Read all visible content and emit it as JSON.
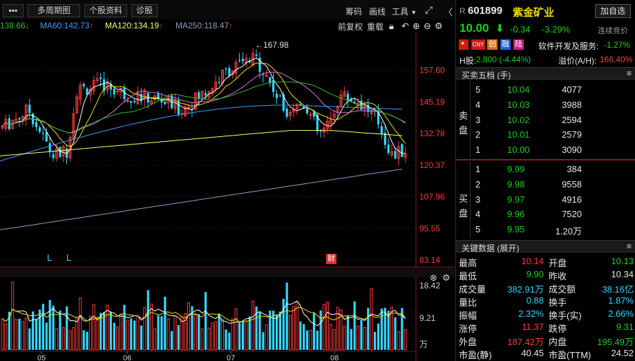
{
  "toolbar": {
    "grid_icon": "▪▪▪",
    "period_button": "多周期图",
    "profile_button": "个股资料",
    "diagnose_button": "诊股",
    "chips_link": "筹码",
    "draw_link": "画线",
    "tools_menu": "工具",
    "expand_icon": "⤢",
    "collapse_icon": "〈"
  },
  "ma_legend": {
    "ma_first": "138.66",
    "ma60": "MA60:142.73",
    "ma120": "MA120:134.19",
    "ma250": "MA250:118.47"
  },
  "chart_controls": {
    "adjust": "前复权",
    "overlay": "重载"
  },
  "price_axis": [
    "157.60",
    "145.19",
    "132.78",
    "120.37",
    "107.96",
    "95.55",
    "83.14"
  ],
  "volume_axis": [
    "18.42",
    "9.21",
    "万"
  ],
  "months": [
    "05",
    "06",
    "07",
    "08"
  ],
  "annotations": {
    "peak": "←167.98",
    "markers": [
      "L",
      "L"
    ],
    "finance_badge": "财"
  },
  "colors": {
    "up": "#ff3b3b",
    "down": "#33d6ff",
    "ma5": "#ffffff",
    "ma10": "#f0e000",
    "ma20": "#e070e0",
    "ma30": "#30c030",
    "ma60": "#3aa0ff",
    "ma120": "#ffff66",
    "ma250": "#8aa0c0"
  },
  "quote": {
    "prefix": "R",
    "code": "601899",
    "name": "紫金矿业",
    "add_button": "加自选",
    "price": "10.00",
    "change": "-0.34",
    "change_pct": "-3.29%",
    "auction": "连续竞价",
    "badges": [
      "CNY",
      "创",
      "融",
      "陆"
    ],
    "sector": "软件开发及服务:",
    "sector_pct": "-1.27%",
    "h_label": "H股:",
    "h_value": "2.800 (-4.44%)",
    "premium_label": "溢价(A/H):",
    "premium_value": "166.40%"
  },
  "orderbook": {
    "title": "买卖五档 (手)",
    "sell_label": [
      "卖",
      "盘"
    ],
    "buy_label": [
      "买",
      "盘"
    ],
    "sell": [
      {
        "level": "5",
        "price": "10.04",
        "vol": "4077"
      },
      {
        "level": "4",
        "price": "10.03",
        "vol": "3988"
      },
      {
        "level": "3",
        "price": "10.02",
        "vol": "2594"
      },
      {
        "level": "2",
        "price": "10.01",
        "vol": "2579"
      },
      {
        "level": "1",
        "price": "10.00",
        "vol": "3090"
      }
    ],
    "buy": [
      {
        "level": "1",
        "price": "9.99",
        "vol": "384"
      },
      {
        "level": "2",
        "price": "9.98",
        "vol": "9558"
      },
      {
        "level": "3",
        "price": "9.97",
        "vol": "4916"
      },
      {
        "level": "4",
        "price": "9.96",
        "vol": "7520"
      },
      {
        "level": "5",
        "price": "9.95",
        "vol": "1.20万"
      }
    ]
  },
  "keydata": {
    "title": "关键数据 (展开)",
    "rows": [
      {
        "l1": "最高",
        "v1": "10.14",
        "c1": "red",
        "l2": "开盘",
        "v2": "10.13",
        "c2": "green"
      },
      {
        "l1": "最低",
        "v1": "9.90",
        "c1": "green",
        "l2": "昨收",
        "v2": "10.34",
        "c2": "white"
      },
      {
        "l1": "成交量",
        "v1": "382.91万",
        "c1": "cyan",
        "l2": "成交额",
        "v2": "38.16亿",
        "c2": "cyan"
      },
      {
        "l1": "量比",
        "v1": "0.88",
        "c1": "cyan",
        "l2": "换手",
        "v2": "1.87%",
        "c2": "cyan"
      },
      {
        "l1": "振幅",
        "v1": "2.32%",
        "c1": "cyan",
        "l2": "换手(实)",
        "v2": "2.66%",
        "c2": "cyan"
      },
      {
        "l1": "涨停",
        "v1": "11.37",
        "c1": "red",
        "l2": "跌停",
        "v2": "9.31",
        "c2": "green"
      },
      {
        "l1": "外盘",
        "v1": "187.42万",
        "c1": "red",
        "l2": "内盘",
        "v2": "195.49万",
        "c2": "green"
      },
      {
        "l1": "市盈(静)",
        "v1": "40.45",
        "c1": "white",
        "l2": "市盈(TTM)",
        "v2": "24.52",
        "c2": "white"
      }
    ]
  }
}
